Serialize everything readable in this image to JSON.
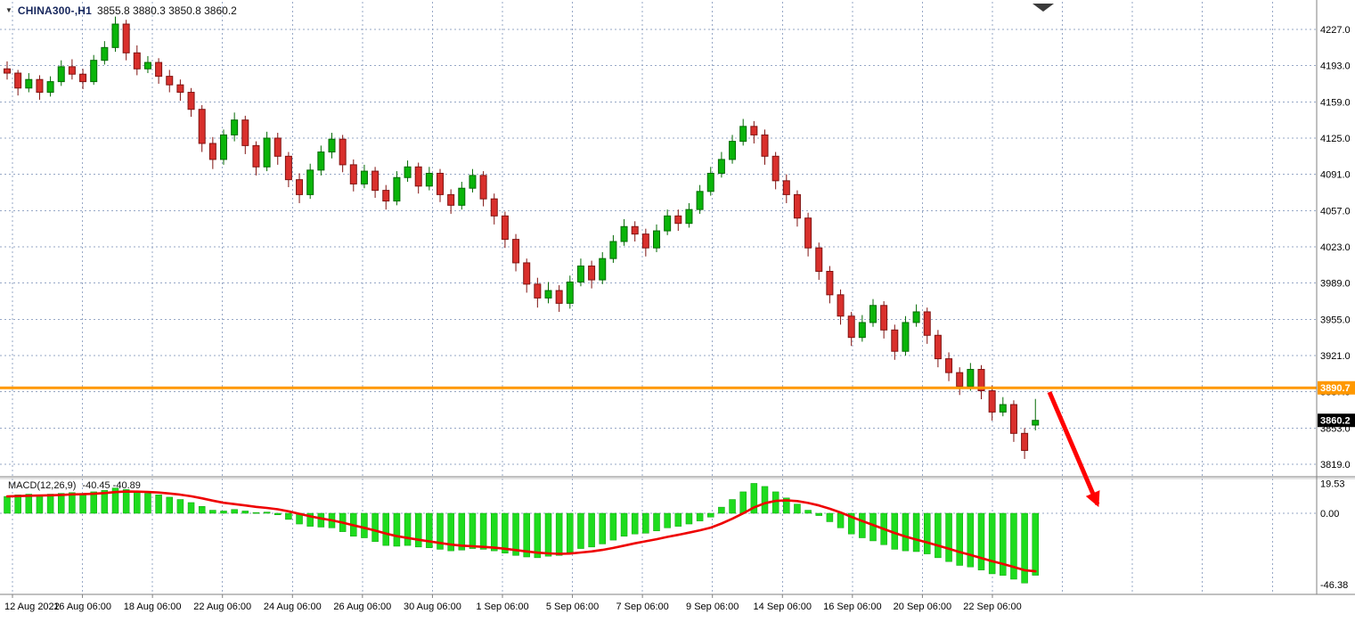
{
  "chart_data": {
    "type": "candlestick",
    "symbol": "CHINA300-,H1",
    "ohlc_line": "3855.8 3880.3 3850.8 3860.2",
    "price_axis_labels": [
      "4227.0",
      "4193.0",
      "4159.0",
      "4125.0",
      "4091.0",
      "4057.0",
      "4023.0",
      "3989.0",
      "3955.0",
      "3921.0",
      "3887.0",
      "3853.0",
      "3819.0"
    ],
    "price_axis_range": [
      3819,
      4227
    ],
    "time_axis_labels": [
      "12 Aug 2022",
      "16 Aug 06:00",
      "18 Aug 06:00",
      "22 Aug 06:00",
      "24 Aug 06:00",
      "26 Aug 06:00",
      "30 Aug 06:00",
      "1 Sep 06:00",
      "5 Sep 06:00",
      "7 Sep 06:00",
      "9 Sep 06:00",
      "14 Sep 06:00",
      "16 Sep 06:00",
      "20 Sep 06:00",
      "22 Sep 06:00"
    ],
    "candles": [
      [
        4190,
        4197,
        4180,
        4186
      ],
      [
        4186,
        4189,
        4165,
        4172
      ],
      [
        4172,
        4186,
        4168,
        4180
      ],
      [
        4180,
        4184,
        4161,
        4168
      ],
      [
        4168,
        4183,
        4164,
        4178
      ],
      [
        4178,
        4198,
        4174,
        4192
      ],
      [
        4192,
        4199,
        4180,
        4185
      ],
      [
        4185,
        4190,
        4171,
        4178
      ],
      [
        4178,
        4203,
        4175,
        4198
      ],
      [
        4198,
        4216,
        4194,
        4210
      ],
      [
        4210,
        4239,
        4206,
        4232
      ],
      [
        4232,
        4236,
        4198,
        4205
      ],
      [
        4205,
        4212,
        4184,
        4190
      ],
      [
        4190,
        4202,
        4186,
        4196
      ],
      [
        4196,
        4200,
        4176,
        4183
      ],
      [
        4183,
        4189,
        4168,
        4175
      ],
      [
        4175,
        4180,
        4160,
        4168
      ],
      [
        4168,
        4172,
        4145,
        4152
      ],
      [
        4152,
        4156,
        4112,
        4120
      ],
      [
        4120,
        4126,
        4096,
        4105
      ],
      [
        4105,
        4133,
        4100,
        4128
      ],
      [
        4128,
        4149,
        4122,
        4142
      ],
      [
        4142,
        4146,
        4110,
        4118
      ],
      [
        4118,
        4122,
        4090,
        4098
      ],
      [
        4098,
        4131,
        4094,
        4125
      ],
      [
        4125,
        4130,
        4100,
        4108
      ],
      [
        4108,
        4112,
        4079,
        4086
      ],
      [
        4086,
        4092,
        4064,
        4072
      ],
      [
        4072,
        4101,
        4068,
        4095
      ],
      [
        4095,
        4118,
        4090,
        4112
      ],
      [
        4112,
        4130,
        4106,
        4124
      ],
      [
        4124,
        4128,
        4093,
        4100
      ],
      [
        4100,
        4105,
        4075,
        4082
      ],
      [
        4082,
        4100,
        4078,
        4094
      ],
      [
        4094,
        4098,
        4069,
        4076
      ],
      [
        4076,
        4081,
        4058,
        4066
      ],
      [
        4066,
        4094,
        4062,
        4088
      ],
      [
        4088,
        4104,
        4084,
        4098
      ],
      [
        4098,
        4102,
        4073,
        4080
      ],
      [
        4080,
        4098,
        4076,
        4092
      ],
      [
        4092,
        4096,
        4065,
        4072
      ],
      [
        4072,
        4077,
        4054,
        4062
      ],
      [
        4062,
        4084,
        4058,
        4078
      ],
      [
        4078,
        4096,
        4074,
        4090
      ],
      [
        4090,
        4094,
        4061,
        4068
      ],
      [
        4068,
        4073,
        4044,
        4052
      ],
      [
        4052,
        4056,
        4022,
        4030
      ],
      [
        4030,
        4035,
        4000,
        4008
      ],
      [
        4008,
        4012,
        3980,
        3988
      ],
      [
        3988,
        3994,
        3966,
        3975
      ],
      [
        3975,
        3990,
        3970,
        3982
      ],
      [
        3982,
        3987,
        3962,
        3970
      ],
      [
        3970,
        3996,
        3965,
        3990
      ],
      [
        3990,
        4012,
        3986,
        4005
      ],
      [
        4005,
        4010,
        3984,
        3992
      ],
      [
        3992,
        4018,
        3988,
        4012
      ],
      [
        4012,
        4034,
        4008,
        4028
      ],
      [
        4028,
        4049,
        4024,
        4042
      ],
      [
        4042,
        4047,
        4028,
        4035
      ],
      [
        4035,
        4040,
        4014,
        4022
      ],
      [
        4022,
        4044,
        4018,
        4038
      ],
      [
        4038,
        4058,
        4034,
        4052
      ],
      [
        4052,
        4058,
        4038,
        4045
      ],
      [
        4045,
        4064,
        4041,
        4058
      ],
      [
        4058,
        4081,
        4054,
        4075
      ],
      [
        4075,
        4098,
        4071,
        4092
      ],
      [
        4092,
        4112,
        4088,
        4105
      ],
      [
        4105,
        4128,
        4101,
        4122
      ],
      [
        4122,
        4143,
        4118,
        4136
      ],
      [
        4136,
        4141,
        4120,
        4128
      ],
      [
        4128,
        4133,
        4100,
        4108
      ],
      [
        4108,
        4112,
        4077,
        4085
      ],
      [
        4085,
        4091,
        4064,
        4072
      ],
      [
        4072,
        4076,
        4042,
        4050
      ],
      [
        4050,
        4055,
        4014,
        4022
      ],
      [
        4022,
        4027,
        3992,
        4000
      ],
      [
        4000,
        4005,
        3970,
        3978
      ],
      [
        3978,
        3983,
        3950,
        3958
      ],
      [
        3958,
        3962,
        3930,
        3938
      ],
      [
        3938,
        3959,
        3934,
        3952
      ],
      [
        3952,
        3974,
        3948,
        3968
      ],
      [
        3968,
        3972,
        3937,
        3945
      ],
      [
        3945,
        3950,
        3917,
        3925
      ],
      [
        3925,
        3958,
        3921,
        3952
      ],
      [
        3952,
        3969,
        3948,
        3962
      ],
      [
        3962,
        3966,
        3932,
        3940
      ],
      [
        3940,
        3945,
        3910,
        3918
      ],
      [
        3918,
        3924,
        3897,
        3905
      ],
      [
        3905,
        3910,
        3884,
        3892
      ],
      [
        3892,
        3914,
        3888,
        3908
      ],
      [
        3908,
        3912,
        3880,
        3888
      ],
      [
        3888,
        3893,
        3860,
        3868
      ],
      [
        3868,
        3882,
        3864,
        3875
      ],
      [
        3875,
        3879,
        3840,
        3848
      ],
      [
        3848,
        3853,
        3824,
        3832
      ],
      [
        3855.8,
        3880.3,
        3850.8,
        3860.2
      ]
    ],
    "horizontal_line": {
      "value": 3890.7,
      "label": "3890.7"
    },
    "current_price_badge": {
      "label": "3860.2"
    },
    "macd": {
      "title": "MACD(12,26,9)",
      "values": "-40.45 -40.89",
      "axis_labels": {
        "max": "19.53",
        "zero": "0.00",
        "min": "-46.38"
      },
      "signal_ema_period": 9,
      "histogram": [
        11,
        12,
        12.5,
        12,
        12.5,
        13,
        13.5,
        13,
        14,
        15,
        16.5,
        15.5,
        14,
        13,
        12,
        10.5,
        9,
        7,
        4.5,
        2,
        1.5,
        2.5,
        1.5,
        0.5,
        0.8,
        -1,
        -4,
        -7,
        -8.5,
        -9,
        -9.5,
        -12,
        -15,
        -16,
        -18.5,
        -21,
        -21.5,
        -21,
        -22,
        -22.5,
        -23.5,
        -24.5,
        -24,
        -23,
        -23.5,
        -24.5,
        -26,
        -27.5,
        -28.5,
        -29,
        -28,
        -27.5,
        -25.5,
        -23,
        -22,
        -20,
        -17.5,
        -15,
        -13.5,
        -13,
        -11.5,
        -9.5,
        -8.5,
        -7,
        -5,
        -2.5,
        4,
        9,
        14,
        19.5,
        17.5,
        14,
        10,
        6,
        2,
        -1.5,
        -5.5,
        -9.5,
        -13.5,
        -16,
        -18,
        -20.5,
        -23.5,
        -24.5,
        -25,
        -26.5,
        -29,
        -31.5,
        -34,
        -35,
        -37,
        -39.5,
        -40.5,
        -43,
        -45.5,
        -40.45
      ]
    },
    "annotations": {
      "red_arrow": {
        "from_price": 3890.7,
        "direction": "down-right"
      }
    }
  },
  "colors": {
    "bull": "#0ab50a",
    "bull_border": "#046a04",
    "bear": "#d9302c",
    "bear_border": "#801311",
    "histogram": "#1edc1e",
    "signal": "#ee0000",
    "grid": "#96a7c6",
    "orange_line": "#ff9800",
    "arrow": "#ff0000",
    "axis_text": "#000000",
    "divider": "#808080",
    "badge_black": "#000000"
  }
}
